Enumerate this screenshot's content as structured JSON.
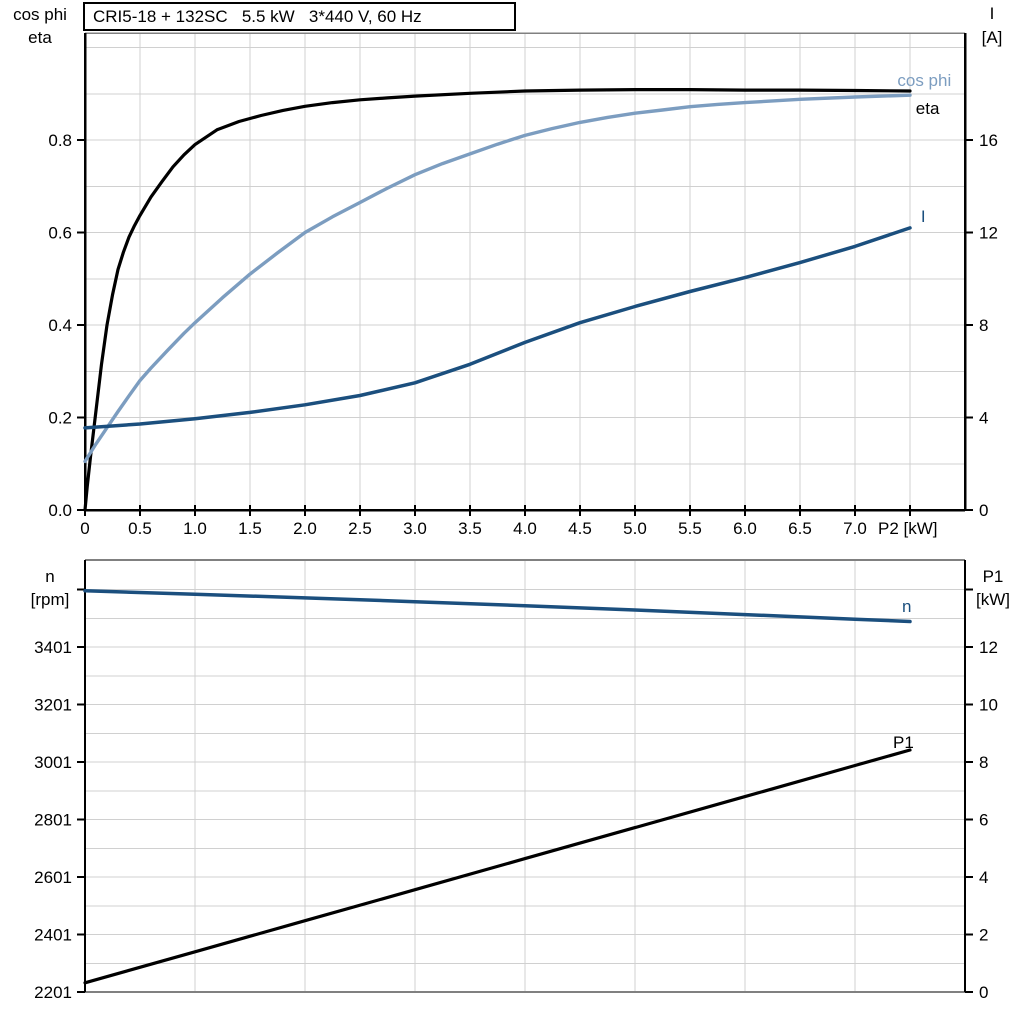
{
  "title_box": {
    "text": "CRI5-18 + 132SC   5.5 kW   3*440 V, 60 Hz"
  },
  "colors": {
    "eta": "#000000",
    "cos_phi": "#7C9DC0",
    "current": "#1B4F7E",
    "speed": "#1B4F7E",
    "p1": "#000000",
    "grid": "#D0D0D0",
    "axis": "#000000",
    "frame": "#808080",
    "text": "#000000",
    "background": "#FFFFFF"
  },
  "chart_data": [
    {
      "id": "top",
      "type": "line",
      "title": "CRI5-18 + 132SC   5.5 kW   3*440 V, 60 Hz",
      "x_axis": {
        "label": "P2 [kW]",
        "range": [
          0,
          8
        ],
        "grid_step": 0.5,
        "ticks": [
          {
            "v": 0,
            "label": "0"
          },
          {
            "v": 0.5,
            "label": "0.5"
          },
          {
            "v": 1,
            "label": "1.0"
          },
          {
            "v": 1.5,
            "label": "1.5"
          },
          {
            "v": 2,
            "label": "2.0"
          },
          {
            "v": 2.5,
            "label": "2.5"
          },
          {
            "v": 3,
            "label": "3.0"
          },
          {
            "v": 3.5,
            "label": "3.5"
          },
          {
            "v": 4,
            "label": "4.0"
          },
          {
            "v": 4.5,
            "label": "4.5"
          },
          {
            "v": 5,
            "label": "5.0"
          },
          {
            "v": 5.5,
            "label": "5.5"
          },
          {
            "v": 6,
            "label": "6.0"
          },
          {
            "v": 6.5,
            "label": "6.5"
          },
          {
            "v": 7,
            "label": "7.0"
          },
          {
            "v": 7.5,
            "label": ""
          }
        ]
      },
      "y_left": {
        "label": [
          "cos phi",
          "eta"
        ],
        "range": [
          0,
          1.0314
        ],
        "grid_step": 0.1,
        "ticks": [
          {
            "v": 0,
            "label": "0.0"
          },
          {
            "v": 0.2,
            "label": "0.2"
          },
          {
            "v": 0.4,
            "label": "0.4"
          },
          {
            "v": 0.6,
            "label": "0.6"
          },
          {
            "v": 0.8,
            "label": "0.8"
          }
        ]
      },
      "y_right": {
        "label": [
          "I",
          "[A]"
        ],
        "range": [
          0,
          20.63
        ],
        "ticks": [
          {
            "v": 0,
            "label": "0"
          },
          {
            "v": 4,
            "label": "4"
          },
          {
            "v": 8,
            "label": "8"
          },
          {
            "v": 12,
            "label": "12"
          },
          {
            "v": 16,
            "label": "16"
          }
        ]
      },
      "series": [
        {
          "name": "eta",
          "axis": "left",
          "color_key": "eta",
          "width": 3.2,
          "label": {
            "text": "eta",
            "x": 7.66,
            "y": 0.856
          },
          "points": [
            [
              0,
              0
            ],
            [
              0.02,
              0.05
            ],
            [
              0.05,
              0.115
            ],
            [
              0.08,
              0.175
            ],
            [
              0.1,
              0.215
            ],
            [
              0.15,
              0.315
            ],
            [
              0.2,
              0.4
            ],
            [
              0.25,
              0.465
            ],
            [
              0.3,
              0.52
            ],
            [
              0.35,
              0.558
            ],
            [
              0.4,
              0.59
            ],
            [
              0.45,
              0.615
            ],
            [
              0.5,
              0.637
            ],
            [
              0.6,
              0.677
            ],
            [
              0.7,
              0.71
            ],
            [
              0.8,
              0.742
            ],
            [
              0.9,
              0.768
            ],
            [
              1.0,
              0.79
            ],
            [
              1.2,
              0.822
            ],
            [
              1.4,
              0.84
            ],
            [
              1.6,
              0.853
            ],
            [
              1.8,
              0.864
            ],
            [
              2.0,
              0.873
            ],
            [
              2.25,
              0.881
            ],
            [
              2.5,
              0.887
            ],
            [
              2.75,
              0.891
            ],
            [
              3.0,
              0.895
            ],
            [
              3.5,
              0.901
            ],
            [
              4.0,
              0.906
            ],
            [
              4.5,
              0.908
            ],
            [
              5.0,
              0.909
            ],
            [
              5.5,
              0.909
            ],
            [
              6.0,
              0.908
            ],
            [
              6.5,
              0.908
            ],
            [
              7.0,
              0.907
            ],
            [
              7.5,
              0.906
            ]
          ]
        },
        {
          "name": "cos phi",
          "axis": "left",
          "color_key": "cos_phi",
          "width": 3.4,
          "label": {
            "text": "cos phi",
            "x": 7.63,
            "y": 0.917
          },
          "points": [
            [
              0,
              0.105
            ],
            [
              0.1,
              0.143
            ],
            [
              0.2,
              0.178
            ],
            [
              0.3,
              0.213
            ],
            [
              0.4,
              0.247
            ],
            [
              0.5,
              0.28
            ],
            [
              0.6,
              0.307
            ],
            [
              0.75,
              0.345
            ],
            [
              0.9,
              0.382
            ],
            [
              1.0,
              0.405
            ],
            [
              1.25,
              0.459
            ],
            [
              1.5,
              0.51
            ],
            [
              1.75,
              0.556
            ],
            [
              2.0,
              0.6
            ],
            [
              2.25,
              0.634
            ],
            [
              2.5,
              0.665
            ],
            [
              2.75,
              0.696
            ],
            [
              3.0,
              0.725
            ],
            [
              3.25,
              0.749
            ],
            [
              3.5,
              0.77
            ],
            [
              3.75,
              0.791
            ],
            [
              4.0,
              0.81
            ],
            [
              4.25,
              0.825
            ],
            [
              4.5,
              0.838
            ],
            [
              4.75,
              0.849
            ],
            [
              5.0,
              0.858
            ],
            [
              5.25,
              0.865
            ],
            [
              5.5,
              0.872
            ],
            [
              5.75,
              0.877
            ],
            [
              6.0,
              0.881
            ],
            [
              6.5,
              0.888
            ],
            [
              7.0,
              0.893
            ],
            [
              7.5,
              0.897
            ]
          ]
        },
        {
          "name": "I",
          "axis": "right",
          "color_key": "current",
          "width": 3.5,
          "label": {
            "text": "I",
            "x": 7.62,
            "y": 12.45
          },
          "points": [
            [
              0,
              3.55
            ],
            [
              0.5,
              3.72
            ],
            [
              1.0,
              3.95
            ],
            [
              1.5,
              4.22
            ],
            [
              2.0,
              4.55
            ],
            [
              2.5,
              4.95
            ],
            [
              3.0,
              5.5
            ],
            [
              3.5,
              6.3
            ],
            [
              4.0,
              7.25
            ],
            [
              4.5,
              8.1
            ],
            [
              5.0,
              8.8
            ],
            [
              5.5,
              9.45
            ],
            [
              6.0,
              10.05
            ],
            [
              6.5,
              10.7
            ],
            [
              7.0,
              11.4
            ],
            [
              7.5,
              12.2
            ]
          ]
        }
      ]
    },
    {
      "id": "bottom",
      "type": "line",
      "x_axis": {
        "label": "",
        "range": [
          0,
          8
        ],
        "grid_step": 1,
        "ticks": []
      },
      "y_left": {
        "label": [
          "n",
          "[rpm]"
        ],
        "range": [
          2201,
          3704
        ],
        "grid_step": 100,
        "ticks": [
          {
            "v": 2201,
            "label": "2201"
          },
          {
            "v": 2401,
            "label": "2401"
          },
          {
            "v": 2601,
            "label": "2601"
          },
          {
            "v": 2801,
            "label": "2801"
          },
          {
            "v": 3001,
            "label": "3001"
          },
          {
            "v": 3201,
            "label": "3201"
          },
          {
            "v": 3401,
            "label": "3401"
          },
          {
            "v": 3601,
            "label": ""
          }
        ]
      },
      "y_right": {
        "label": [
          "P1",
          "[kW]"
        ],
        "range": [
          0,
          15.03
        ],
        "ticks": [
          {
            "v": 0,
            "label": "0"
          },
          {
            "v": 2,
            "label": "2"
          },
          {
            "v": 4,
            "label": "4"
          },
          {
            "v": 6,
            "label": "6"
          },
          {
            "v": 8,
            "label": "8"
          },
          {
            "v": 10,
            "label": "10"
          },
          {
            "v": 12,
            "label": "12"
          },
          {
            "v": 14,
            "label": ""
          }
        ]
      },
      "series": [
        {
          "name": "n",
          "axis": "left",
          "color_key": "speed",
          "width": 3.5,
          "label": {
            "text": "n",
            "x": 7.47,
            "y": 3523
          },
          "points": [
            [
              0,
              3597
            ],
            [
              1,
              3585
            ],
            [
              2,
              3572
            ],
            [
              3,
              3559
            ],
            [
              4,
              3545
            ],
            [
              5,
              3530
            ],
            [
              6,
              3514
            ],
            [
              7,
              3498
            ],
            [
              7.5,
              3490
            ]
          ]
        },
        {
          "name": "P1",
          "axis": "right",
          "color_key": "p1",
          "width": 3.2,
          "label": {
            "text": "P1",
            "x": 7.44,
            "y": 8.49
          },
          "points": [
            [
              0,
              0.32
            ],
            [
              1,
              1.4
            ],
            [
              2,
              2.48
            ],
            [
              3,
              3.56
            ],
            [
              4,
              4.64
            ],
            [
              5,
              5.72
            ],
            [
              6,
              6.8
            ],
            [
              7,
              7.88
            ],
            [
              7.5,
              8.42
            ]
          ]
        }
      ]
    }
  ]
}
